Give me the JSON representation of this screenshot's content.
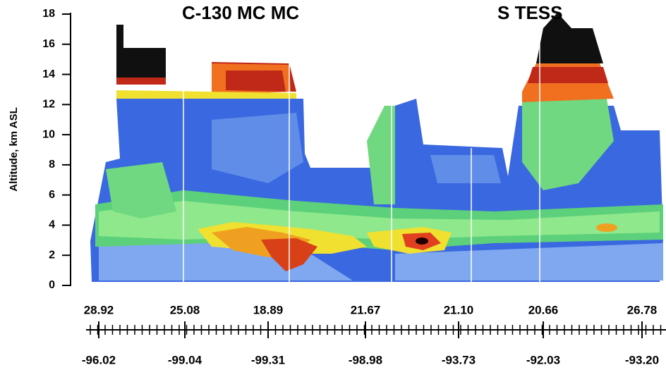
{
  "chart_data": {
    "type": "curtain",
    "title_left": "C-130   MC MC",
    "title_right": "S    TESS",
    "y_label": "Altitude, km ASL",
    "ylim": [
      0,
      18
    ],
    "yticks": [
      0,
      2,
      4,
      6,
      8,
      10,
      12,
      14,
      16,
      18
    ],
    "latitudes": [
      "28.92",
      "25.08",
      "18.89",
      "21.67",
      "21.10",
      "20.66",
      "26.78"
    ],
    "longitudes": [
      "-96.02",
      "-99.04",
      "-99.31",
      "-98.98",
      "-93.73",
      "-92.03",
      "-93.20"
    ]
  }
}
